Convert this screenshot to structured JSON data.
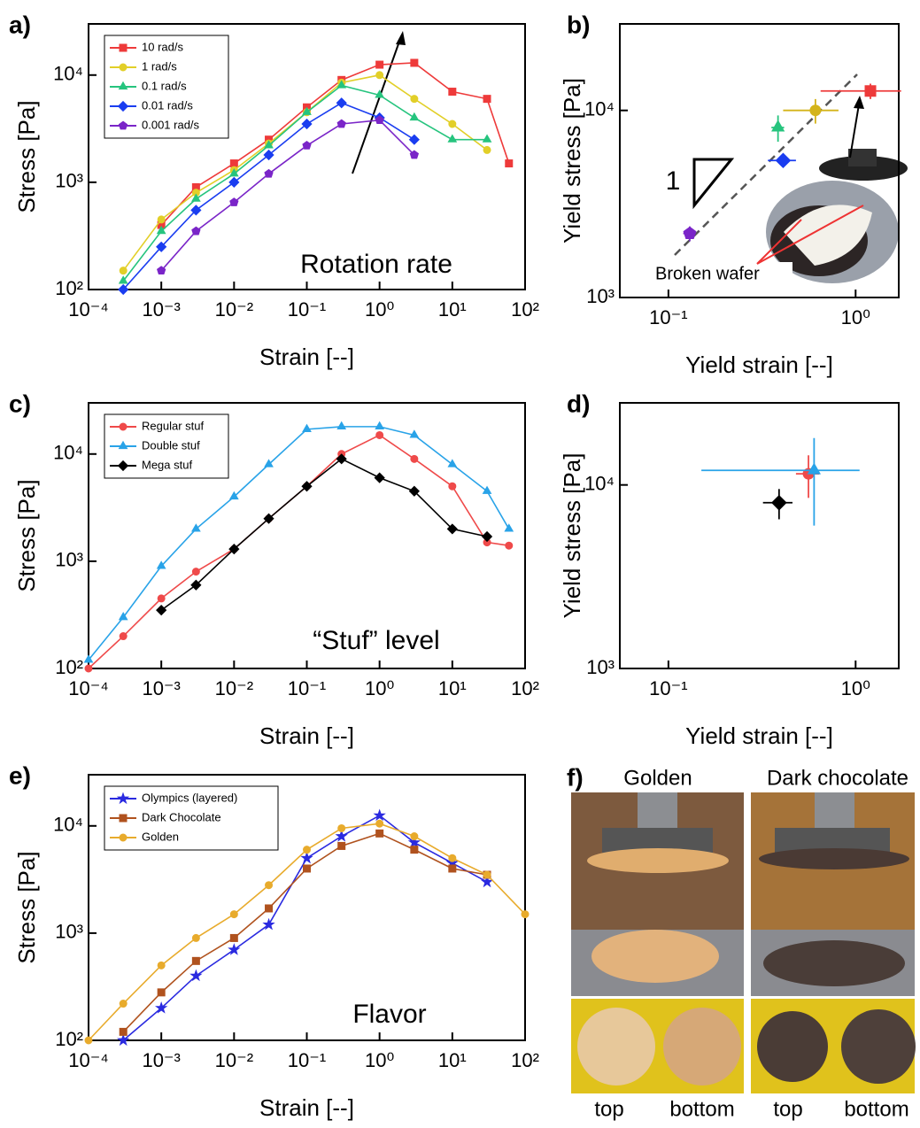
{
  "chart_data": [
    {
      "type": "line",
      "panel_label": "a)",
      "x_label": "Strain [--]",
      "y_label": "Stress [Pa]",
      "annotation": "Rotation rate",
      "xscale": "log",
      "yscale": "log",
      "xlim": [
        0.0001,
        100
      ],
      "ylim": [
        100,
        30000
      ],
      "xticks": [
        {
          "value": 0.0001,
          "label": "10⁻⁴"
        },
        {
          "value": 0.001,
          "label": "10⁻³"
        },
        {
          "value": 0.01,
          "label": "10⁻²"
        },
        {
          "value": 0.1,
          "label": "10⁻¹"
        },
        {
          "value": 1,
          "label": "10⁰"
        },
        {
          "value": 10,
          "label": "10¹"
        },
        {
          "value": 100,
          "label": "10²"
        }
      ],
      "yticks": [
        {
          "value": 100,
          "label": "10²"
        },
        {
          "value": 1000,
          "label": "10³"
        },
        {
          "value": 10000,
          "label": "10⁴"
        }
      ],
      "legend": "upper left",
      "x": [
        0.0003,
        0.001,
        0.003,
        0.01,
        0.03,
        0.1,
        0.3,
        1,
        3,
        10,
        30,
        60
      ],
      "series": [
        {
          "name": "10 rad/s",
          "color": "#ee3a3a",
          "marker": "square",
          "values": [
            null,
            400,
            900,
            1500,
            2500,
            5000,
            9000,
            12500,
            13000,
            7000,
            6000,
            1500
          ]
        },
        {
          "name": "1 rad/s",
          "color": "#e2cf28",
          "marker": "circle",
          "values": [
            150,
            450,
            800,
            1300,
            2300,
            4500,
            8500,
            10000,
            6000,
            3500,
            2000,
            null
          ]
        },
        {
          "name": "0.1 rad/s",
          "color": "#26c47e",
          "marker": "triangle",
          "values": [
            120,
            350,
            700,
            1200,
            2200,
            4500,
            8000,
            6500,
            4000,
            2500,
            2500,
            null
          ]
        },
        {
          "name": "0.01 rad/s",
          "color": "#1a3df0",
          "marker": "diamond",
          "values": [
            100,
            250,
            550,
            1000,
            1800,
            3500,
            5500,
            4000,
            2500,
            null,
            null,
            null
          ]
        },
        {
          "name": "0.001 rad/s",
          "color": "#7a25c8",
          "marker": "pentagon",
          "values": [
            null,
            150,
            350,
            650,
            1200,
            2200,
            3500,
            3800,
            1800,
            null,
            null,
            null
          ]
        }
      ]
    },
    {
      "type": "scatter",
      "panel_label": "b)",
      "x_label": "Yield strain [--]",
      "y_label": "Yield stress [Pa]",
      "annotations": [
        "1",
        "Broken wafer"
      ],
      "xscale": "log",
      "yscale": "log",
      "xlim": [
        0.055,
        1.7
      ],
      "ylim": [
        1000,
        29000
      ],
      "xticks": [
        {
          "value": 0.1,
          "label": "10⁻¹"
        },
        {
          "value": 1,
          "label": "10⁰"
        }
      ],
      "yticks": [
        {
          "value": 1000,
          "label": "10³"
        },
        {
          "value": 10000,
          "label": "10⁴"
        }
      ],
      "x": [
        0.13,
        0.41,
        0.385,
        0.61,
        1.2
      ],
      "values": [
        2200,
        5400,
        8100,
        10000,
        12700
      ],
      "xerr": [
        0.01,
        0.07,
        0.03,
        0.2,
        0.55
      ],
      "yerr": [
        200,
        300,
        1300,
        1500,
        1200
      ],
      "colors": [
        "#7a25c8",
        "#1a3df0",
        "#26c47e",
        "#d4b41a",
        "#ee3a3a"
      ],
      "markers": [
        "pentagon",
        "diamond",
        "triangle",
        "circle",
        "square"
      ]
    },
    {
      "type": "line",
      "panel_label": "c)",
      "x_label": "Strain [--]",
      "y_label": "Stress [Pa]",
      "annotation": "“Stuf” level",
      "xscale": "log",
      "yscale": "log",
      "xlim": [
        0.0001,
        100
      ],
      "ylim": [
        100,
        30000
      ],
      "xticks": [
        {
          "value": 0.0001,
          "label": "10⁻⁴"
        },
        {
          "value": 0.001,
          "label": "10⁻³"
        },
        {
          "value": 0.01,
          "label": "10⁻²"
        },
        {
          "value": 0.1,
          "label": "10⁻¹"
        },
        {
          "value": 1,
          "label": "10⁰"
        },
        {
          "value": 10,
          "label": "10¹"
        },
        {
          "value": 100,
          "label": "10²"
        }
      ],
      "yticks": [
        {
          "value": 100,
          "label": "10²"
        },
        {
          "value": 1000,
          "label": "10³"
        },
        {
          "value": 10000,
          "label": "10⁴"
        }
      ],
      "legend": "upper left",
      "x": [
        0.0001,
        0.0003,
        0.001,
        0.003,
        0.01,
        0.03,
        0.1,
        0.3,
        1,
        3,
        10,
        30,
        60
      ],
      "series": [
        {
          "name": "Regular stuf",
          "color": "#ef4a4a",
          "marker": "circle",
          "values": [
            100,
            200,
            450,
            800,
            1300,
            2500,
            5000,
            10000,
            15000,
            9000,
            5000,
            1500,
            1400
          ]
        },
        {
          "name": "Double stuf",
          "color": "#29a3e8",
          "marker": "triangle",
          "values": [
            120,
            300,
            900,
            2000,
            4000,
            8000,
            17000,
            18000,
            18000,
            15000,
            8000,
            4500,
            2000
          ]
        },
        {
          "name": "Mega stuf",
          "color": "#000000",
          "marker": "diamond",
          "values": [
            null,
            null,
            350,
            600,
            1300,
            2500,
            5000,
            9000,
            6000,
            4500,
            2000,
            1700,
            null
          ]
        }
      ]
    },
    {
      "type": "scatter",
      "panel_label": "d)",
      "x_label": "Yield strain [--]",
      "y_label": "Yield stress [Pa]",
      "xscale": "log",
      "yscale": "log",
      "xlim": [
        0.055,
        1.7
      ],
      "ylim": [
        1000,
        28000
      ],
      "xticks": [
        {
          "value": 0.1,
          "label": "10⁻¹"
        },
        {
          "value": 1,
          "label": "10⁰"
        }
      ],
      "yticks": [
        {
          "value": 1000,
          "label": "10³"
        },
        {
          "value": 10000,
          "label": "10⁴"
        }
      ],
      "x": [
        0.56,
        0.6,
        0.39
      ],
      "values": [
        11500,
        12000,
        8000
      ],
      "xerr": [
        0.08,
        0.45,
        0.07
      ],
      "yerr": [
        3000,
        6000,
        1500
      ],
      "colors": [
        "#ef4a4a",
        "#29a3e8",
        "#000000"
      ],
      "markers": [
        "circle",
        "triangle",
        "diamond"
      ]
    },
    {
      "type": "line",
      "panel_label": "e)",
      "x_label": "Strain [--]",
      "y_label": "Stress [Pa]",
      "annotation": "Flavor",
      "xscale": "log",
      "yscale": "log",
      "xlim": [
        0.0001,
        100
      ],
      "ylim": [
        100,
        30000
      ],
      "xticks": [
        {
          "value": 0.0001,
          "label": "10⁻⁴"
        },
        {
          "value": 0.001,
          "label": "10⁻³"
        },
        {
          "value": 0.01,
          "label": "10⁻²"
        },
        {
          "value": 0.1,
          "label": "10⁻¹"
        },
        {
          "value": 1,
          "label": "10⁰"
        },
        {
          "value": 10,
          "label": "10¹"
        },
        {
          "value": 100,
          "label": "10²"
        }
      ],
      "yticks": [
        {
          "value": 100,
          "label": "10²"
        },
        {
          "value": 1000,
          "label": "10³"
        },
        {
          "value": 10000,
          "label": "10⁴"
        }
      ],
      "legend": "upper left",
      "x": [
        0.0001,
        0.0003,
        0.001,
        0.003,
        0.01,
        0.03,
        0.1,
        0.3,
        1,
        3,
        10,
        30,
        100
      ],
      "series": [
        {
          "name": "Olympics (layered)",
          "color": "#2a2ae0",
          "marker": "star",
          "values": [
            null,
            100,
            200,
            400,
            700,
            1200,
            5000,
            8000,
            12500,
            7000,
            4500,
            3000,
            null
          ]
        },
        {
          "name": "Dark Chocolate",
          "color": "#b0521e",
          "marker": "square",
          "values": [
            null,
            120,
            280,
            550,
            900,
            1700,
            4000,
            6500,
            8500,
            6000,
            4000,
            3500,
            null
          ]
        },
        {
          "name": "Golden",
          "color": "#e8ab2c",
          "marker": "circle",
          "values": [
            100,
            220,
            500,
            900,
            1500,
            2800,
            6000,
            9500,
            10500,
            8000,
            5000,
            3500,
            1500
          ]
        }
      ]
    }
  ],
  "photo_panel": {
    "label": "f)",
    "columns": [
      {
        "title": "Golden",
        "captions": [
          "top",
          "bottom"
        ]
      },
      {
        "title": "Dark chocolate",
        "captions": [
          "top",
          "bottom"
        ]
      }
    ]
  }
}
